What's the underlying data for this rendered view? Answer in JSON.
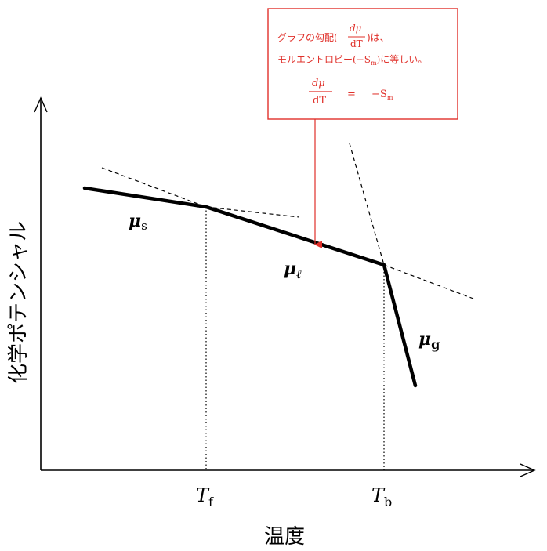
{
  "axes": {
    "y_label": "化学ポテンシャル",
    "x_label": "温度",
    "x_ticks": [
      {
        "main": "T",
        "sub": "f"
      },
      {
        "main": "T",
        "sub": "b"
      }
    ]
  },
  "curves": {
    "solid": {
      "main": "μ",
      "sub": "s"
    },
    "liquid": {
      "main": "μ",
      "sub": "ℓ"
    },
    "gas": {
      "main": "μ",
      "sub": "g"
    }
  },
  "annotation": {
    "line1_prefix": "グラフの勾配(",
    "frac_num": "dμ",
    "frac_den": "dT",
    "line1_suffix": ")は、",
    "line2": "モルエントロピー(−S",
    "line2_sub": "m",
    "line2_suffix": ")に等しい。",
    "eq_num": "dμ",
    "eq_den": "dT",
    "eq_equals": "=",
    "eq_rhs": "−S",
    "eq_rhs_sub": "m"
  },
  "colors": {
    "annotation": "#e0302a",
    "lines": "#000000"
  }
}
